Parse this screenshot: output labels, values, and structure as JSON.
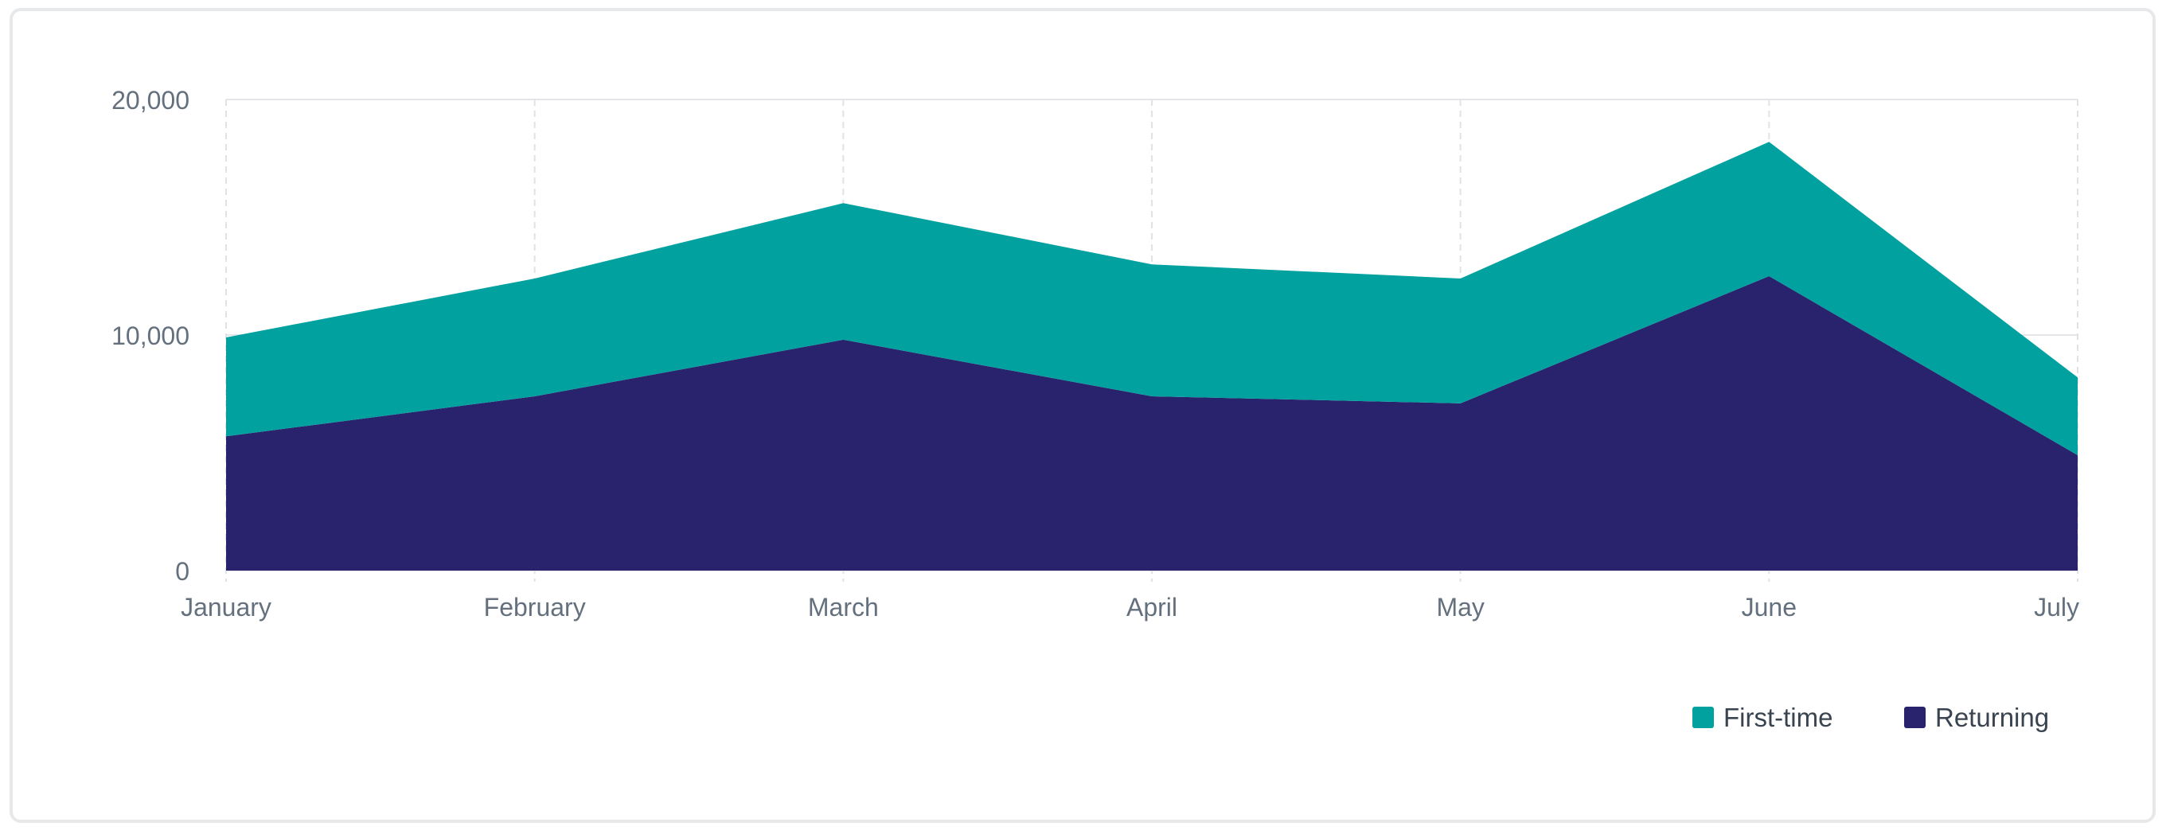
{
  "chart_data": {
    "type": "area",
    "stacked": true,
    "categories": [
      "January",
      "February",
      "March",
      "April",
      "May",
      "June",
      "July"
    ],
    "series": [
      {
        "name": "Returning",
        "values": [
          5700,
          7400,
          9800,
          7400,
          7100,
          12500,
          4900
        ],
        "color": "#29236e"
      },
      {
        "name": "First-time",
        "values": [
          4200,
          5000,
          5800,
          5600,
          5300,
          5700,
          3300
        ],
        "color": "#00a19e"
      }
    ],
    "ylim": [
      0,
      20000
    ],
    "yticks": [
      0,
      10000,
      20000
    ],
    "ytick_labels": [
      "0",
      "10,000",
      "20,000"
    ],
    "grid": true,
    "legend_position": "bottom-right",
    "legend_order": [
      "First-time",
      "Returning"
    ]
  }
}
